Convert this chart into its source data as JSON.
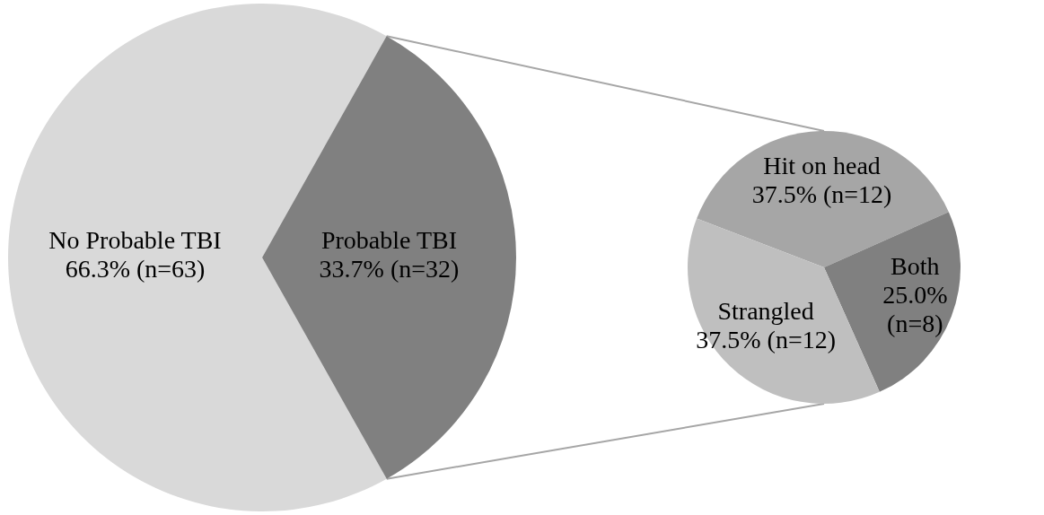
{
  "chart_data": [
    {
      "type": "pie",
      "categories": [
        "No Probable TBI",
        "Probable TBI"
      ],
      "values": [
        66.3,
        33.7
      ],
      "colors": [
        "#d9d9d9",
        "#808080"
      ],
      "value_labels": [
        "66.3% (n=63)",
        "33.7% (n=32)"
      ]
    },
    {
      "type": "pie",
      "categories": [
        "Hit on head",
        "Both",
        "Strangled"
      ],
      "values": [
        37.5,
        25.0,
        37.5
      ],
      "colors": [
        "#a6a6a6",
        "#808080",
        "#bfbfbf"
      ],
      "value_labels": [
        "37.5% (n=12)",
        "25.0% (n=8)",
        "37.5% (n=12)"
      ]
    }
  ]
}
